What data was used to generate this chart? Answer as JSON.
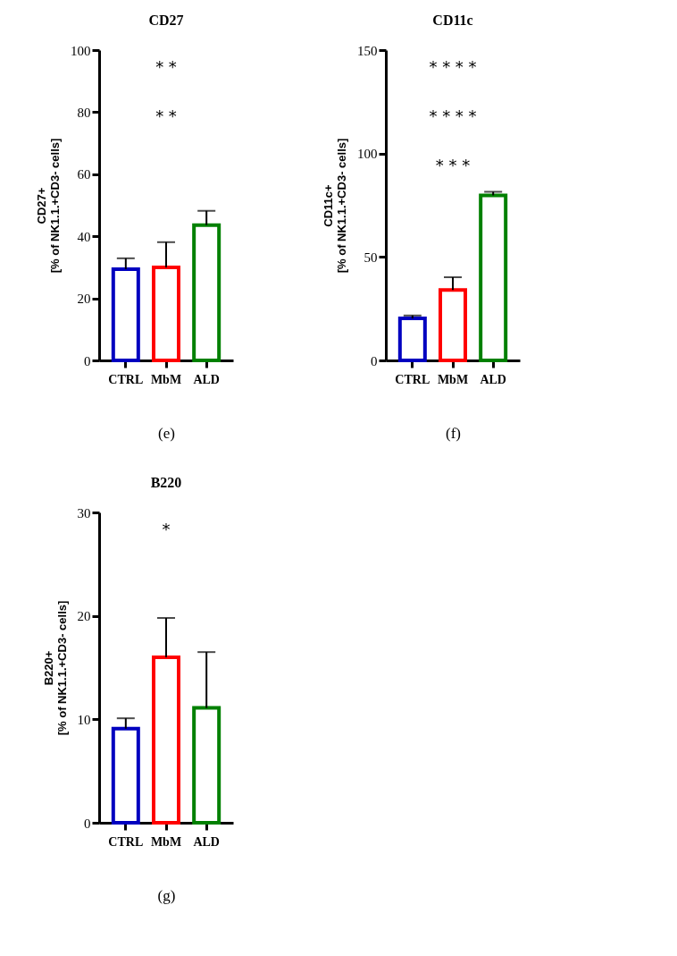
{
  "chart_data": [
    {
      "type": "bar",
      "title": "CD27",
      "xlabel": "(e)",
      "ylabel": "CD27+\n[% of NK1.1.+CD3- cells]",
      "categories": [
        "CTRL",
        "MbM",
        "ALD"
      ],
      "values": [
        29.4,
        30.0,
        43.6
      ],
      "colors": [
        "#0000c0",
        "#ff0000",
        "#008000"
      ],
      "errors": [
        [
          29.4,
          32.9
        ],
        [
          30.0,
          38.1
        ],
        [
          43.6,
          48.2
        ]
      ],
      "ylim": [
        0,
        100
      ],
      "yticks": [
        0,
        20,
        40,
        60,
        80,
        100
      ],
      "annotations": [
        "* *",
        "* *"
      ]
    },
    {
      "type": "bar",
      "title": "CD11c",
      "xlabel": "(f)",
      "ylabel": "CD11c+\n[% of NK1.1.+CD3- cells]",
      "categories": [
        "CTRL",
        "MbM",
        "ALD"
      ],
      "values": [
        20.3,
        34.0,
        79.8
      ],
      "colors": [
        "#0000c0",
        "#ff0000",
        "#008000"
      ],
      "errors": [
        [
          20.3,
          21.7
        ],
        [
          34.0,
          40.2
        ],
        [
          79.8,
          81.5
        ]
      ],
      "ylim": [
        0,
        150
      ],
      "yticks": [
        0,
        50,
        100,
        150
      ],
      "annotations": [
        "* * * *",
        "* * * *",
        "* * *"
      ]
    },
    {
      "type": "bar",
      "title": "B220",
      "xlabel": "(g)",
      "ylabel": "B220+\n[% of NK1.1.+CD3- cells]",
      "categories": [
        "CTRL",
        "MbM",
        "ALD"
      ],
      "values": [
        9.1,
        16.0,
        11.1
      ],
      "colors": [
        "#0000c0",
        "#ff0000",
        "#008000"
      ],
      "errors": [
        [
          9.1,
          10.1
        ],
        [
          16.0,
          19.8
        ],
        [
          11.1,
          16.5
        ]
      ],
      "ylim": [
        0,
        30
      ],
      "yticks": [
        0,
        10,
        20,
        30
      ],
      "annotations": [
        "*"
      ]
    }
  ]
}
